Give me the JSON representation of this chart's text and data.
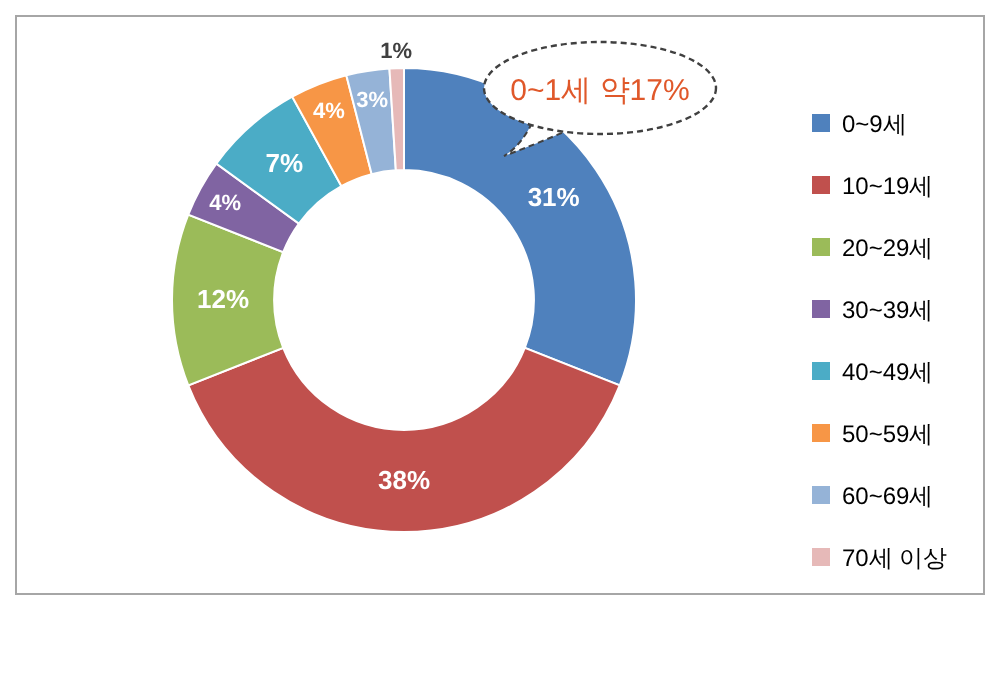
{
  "chart_data": {
    "type": "donut",
    "categories": [
      "0~9세",
      "10~19세",
      "20~29세",
      "30~39세",
      "40~49세",
      "50~59세",
      "60~69세",
      "70세 이상"
    ],
    "values": [
      31,
      38,
      12,
      4,
      7,
      4,
      3,
      1
    ],
    "value_labels": [
      "31%",
      "38%",
      "12%",
      "4%",
      "7%",
      "4%",
      "3%",
      "1%"
    ],
    "colors": [
      "#4f81bd",
      "#c0504d",
      "#9bbb59",
      "#8064a2",
      "#4bacc6",
      "#f79646",
      "#95b3d7",
      "#e6b9b8"
    ],
    "annotations": [
      "0~1세 약17%"
    ],
    "legend": "right"
  }
}
